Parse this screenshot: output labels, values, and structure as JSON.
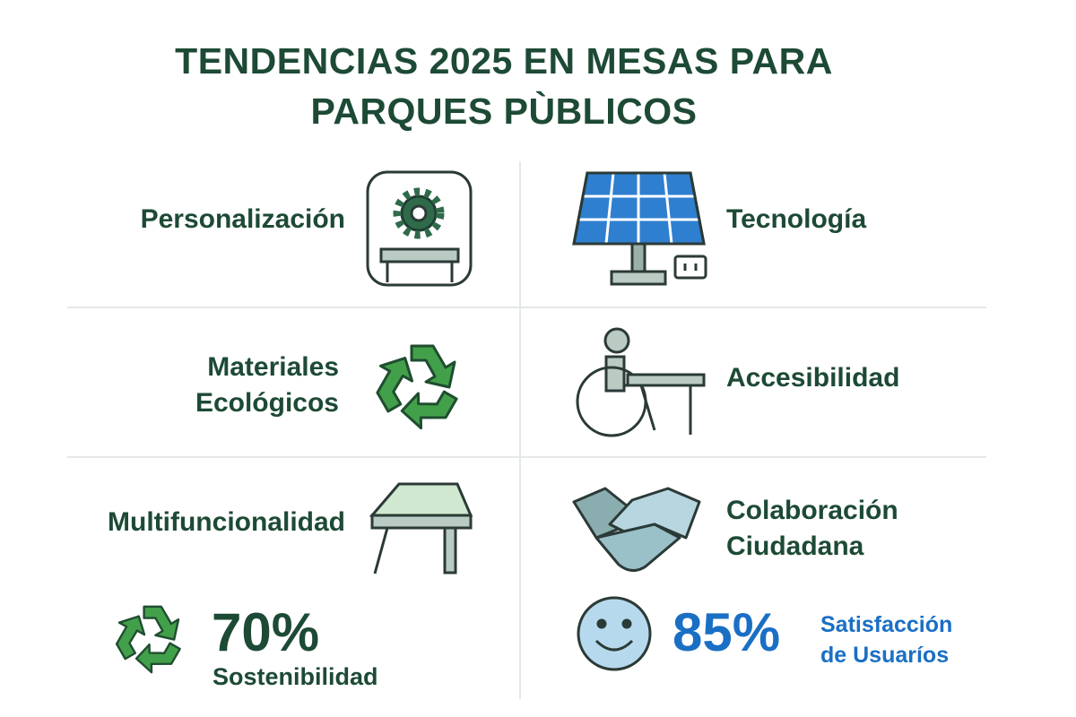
{
  "header": {
    "title": "TENDENCIAS 2025 EN MESAS PARA PARQUES PÙBLICOS"
  },
  "trends": [
    {
      "label_lines": [
        "Personalización"
      ]
    },
    {
      "label_lines": [
        "Tecnología"
      ]
    },
    {
      "label_lines": [
        "Materiales",
        "Ecológicos"
      ]
    },
    {
      "label_lines": [
        "Accesibilidad"
      ]
    },
    {
      "label_lines": [
        "Multifuncionalidad"
      ]
    },
    {
      "label_lines": [
        "Colaboración",
        "Ciudadana"
      ]
    }
  ],
  "stats": [
    {
      "value": "70%",
      "label_lines": [
        "Sostenibilidad"
      ]
    },
    {
      "value": "85%",
      "label_lines": [
        "Satisfacción",
        "de Usuaríos"
      ]
    }
  ]
}
